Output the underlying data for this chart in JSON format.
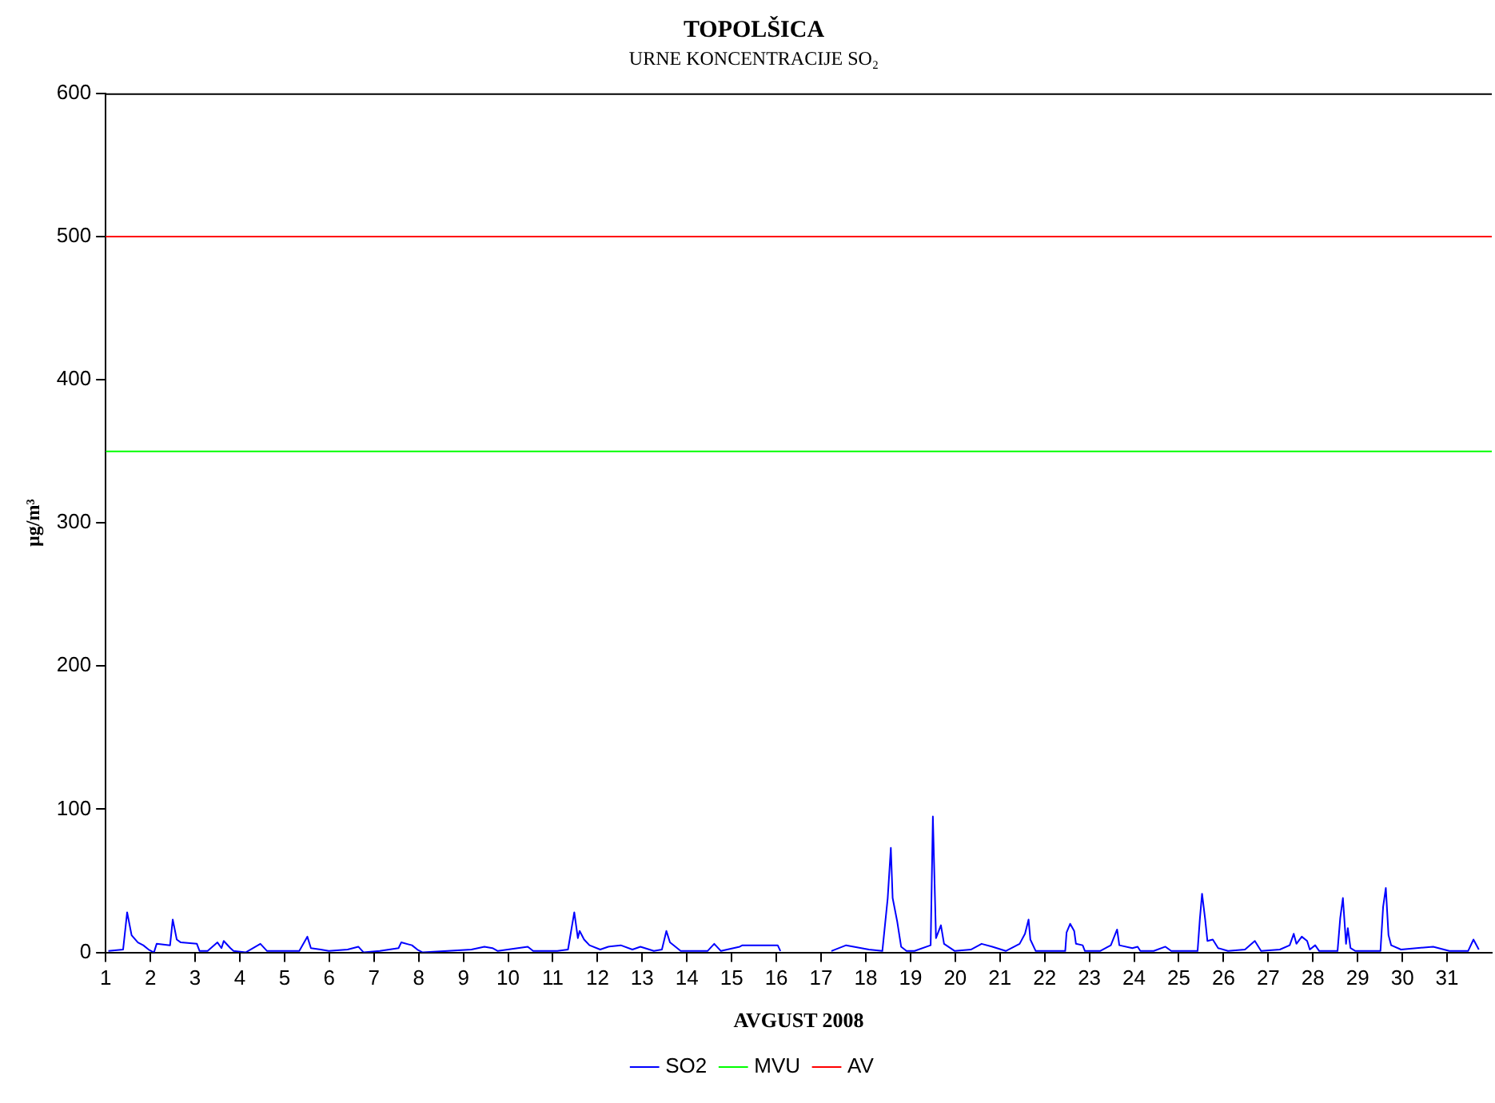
{
  "chart_data": {
    "type": "line",
    "title": "TOPOLŠICA",
    "subtitle": "URNE KONCENTRACIJE SO₂",
    "xlabel": "AVGUST 2008",
    "ylabel": "µg/m³",
    "xlim": [
      1,
      32
    ],
    "xticks": [
      1,
      2,
      3,
      4,
      5,
      6,
      7,
      8,
      9,
      10,
      11,
      12,
      13,
      14,
      15,
      16,
      17,
      18,
      19,
      20,
      21,
      22,
      23,
      24,
      25,
      26,
      27,
      28,
      29,
      30,
      31
    ],
    "ylim": [
      0,
      600
    ],
    "yticks": [
      0,
      100,
      200,
      300,
      400,
      500,
      600
    ],
    "grid": false,
    "legend": "bottom",
    "marker": "none",
    "line_style": "solid",
    "series": [
      {
        "name": "SO2",
        "color": "#0000ff",
        "x": [
          1.06,
          1.39,
          1.48,
          1.58,
          1.72,
          1.84,
          1.96,
          2.08,
          2.14,
          2.44,
          2.5,
          2.59,
          2.68,
          3.04,
          3.1,
          3.28,
          3.5,
          3.59,
          3.64,
          3.79,
          3.86,
          4.13,
          4.46,
          4.61,
          5.33,
          5.51,
          5.59,
          5.81,
          5.99,
          6.41,
          6.65,
          6.77,
          7.13,
          7.55,
          7.61,
          7.85,
          7.97,
          8.09,
          9.18,
          9.47,
          9.65,
          9.77,
          10.44,
          10.56,
          11.1,
          11.34,
          11.48,
          11.56,
          11.6,
          11.7,
          11.82,
          12.06,
          12.24,
          12.52,
          12.78,
          12.96,
          13.26,
          13.44,
          13.54,
          13.62,
          13.86,
          14.46,
          14.61,
          14.76,
          15.18,
          15.24,
          16.03,
          16.09,
          16.6,
          17.23,
          17.56,
          18.07,
          18.37,
          18.49,
          18.56,
          18.6,
          18.7,
          18.79,
          18.91,
          19.09,
          19.45,
          19.5,
          19.57,
          19.68,
          19.75,
          19.99,
          20.35,
          20.59,
          20.83,
          21.13,
          21.44,
          21.56,
          21.64,
          21.68,
          21.8,
          22.46,
          22.49,
          22.57,
          22.66,
          22.7,
          22.85,
          22.9,
          23.24,
          23.48,
          23.62,
          23.67,
          23.96,
          24.08,
          24.14,
          24.44,
          24.7,
          24.83,
          25.42,
          25.47,
          25.52,
          25.59,
          25.64,
          25.76,
          25.88,
          26.1,
          26.48,
          26.7,
          26.84,
          27.26,
          27.48,
          27.57,
          27.63,
          27.75,
          27.87,
          27.93,
          28.05,
          28.14,
          28.55,
          28.61,
          28.67,
          28.74,
          28.78,
          28.84,
          28.95,
          29.51,
          29.57,
          29.63,
          29.69,
          29.75,
          29.97,
          30.69,
          31.05,
          31.47,
          31.59,
          31.71
        ],
        "values": [
          1,
          2,
          28,
          12,
          7,
          5,
          2,
          0,
          6,
          5,
          23,
          9,
          7,
          6,
          1,
          1,
          7,
          3,
          8,
          3,
          1,
          0,
          6,
          1,
          1,
          11,
          3,
          2,
          1,
          2,
          4,
          0,
          1,
          3,
          7,
          5,
          2,
          0,
          2,
          4,
          3,
          1,
          4,
          1,
          1,
          2,
          28,
          10,
          15,
          9,
          5,
          2,
          4,
          5,
          2,
          4,
          1,
          2,
          15,
          7,
          1,
          1,
          6,
          1,
          4,
          5,
          5,
          1,
          null,
          1,
          5,
          2,
          1,
          38,
          73,
          38,
          22,
          4,
          1,
          1,
          5,
          95,
          10,
          19,
          6,
          1,
          2,
          6,
          4,
          1,
          6,
          13,
          23,
          9,
          1,
          1,
          14,
          20,
          15,
          6,
          5,
          1,
          1,
          5,
          16,
          5,
          3,
          4,
          1,
          1,
          4,
          1,
          1,
          23,
          41,
          23,
          8,
          9,
          3,
          1,
          2,
          8,
          1,
          2,
          5,
          13,
          6,
          11,
          8,
          2,
          5,
          1,
          1,
          24,
          38,
          6,
          17,
          3,
          1,
          1,
          32,
          45,
          12,
          5,
          2,
          4,
          1,
          1,
          9,
          2
        ]
      },
      {
        "name": "MVU",
        "color": "#00ff00",
        "x": [
          1,
          32
        ],
        "values": [
          350,
          350
        ]
      },
      {
        "name": "AV",
        "color": "#ff0000",
        "x": [
          1,
          32
        ],
        "values": [
          500,
          500
        ]
      }
    ]
  }
}
